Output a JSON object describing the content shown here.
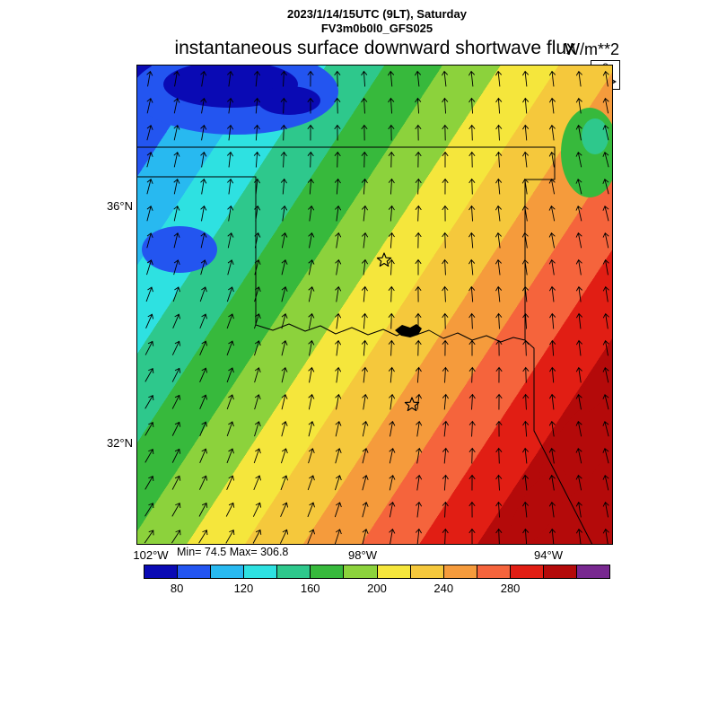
{
  "header": {
    "datetime_line": "2023/1/14/15UTC (9LT), Saturday",
    "model_line": "FV3m0b0l0_GFS025",
    "title": "instantaneous surface downward shortwave flux",
    "units": "W/m**2",
    "reference_value": "8"
  },
  "stats": {
    "min_max": "Min= 74.5 Max= 306.8"
  },
  "axes": {
    "lat_ticks": [
      "36°N",
      "32°N"
    ],
    "lon_ticks": [
      "102°W",
      "98°W",
      "94°W"
    ]
  },
  "chart_data": {
    "type": "heatmap",
    "title": "instantaneous surface downward shortwave flux",
    "units": "W/m**2",
    "datetime": "2023/1/14/15UTC (9LT), Saturday",
    "model": "FV3m0b0l0_GFS025",
    "min": 74.5,
    "max": 306.8,
    "reference_vector": "8",
    "colorbar": {
      "boundaries": [
        60,
        80,
        100,
        120,
        140,
        160,
        180,
        200,
        220,
        240,
        260,
        280,
        300,
        320,
        340
      ],
      "colors": [
        "#0a0ab4",
        "#2355f0",
        "#28b9f0",
        "#2ee1e1",
        "#2ec88c",
        "#37b93c",
        "#8cd23c",
        "#f5e63c",
        "#f5c83c",
        "#f59b3c",
        "#f5643c",
        "#e11e14",
        "#b40a0a",
        "#782890"
      ],
      "tick_labels": [
        80,
        120,
        160,
        200,
        240,
        280
      ]
    },
    "axes": {
      "lat_tick_labels": [
        "36°N",
        "32°N"
      ],
      "lon_tick_labels": [
        "102°W",
        "98°W",
        "94°W"
      ]
    },
    "field": "surface downward shortwave flux (W/m**2) increasing in diagonal contour bands from ~75 (blue, northwest corner) to ~307 (dark red, southeast corner)",
    "vectors": "regular grid of surface wind arrows pointing generally northward, tilting north-east on the west side and north-north-west on the east side; reference arrow length = 8",
    "geography": "Oklahoma and north Texas state borders with the Red River and a small black lake (Lake Texoma); two hollow star city markers (central Oklahoma, north Texas)"
  }
}
